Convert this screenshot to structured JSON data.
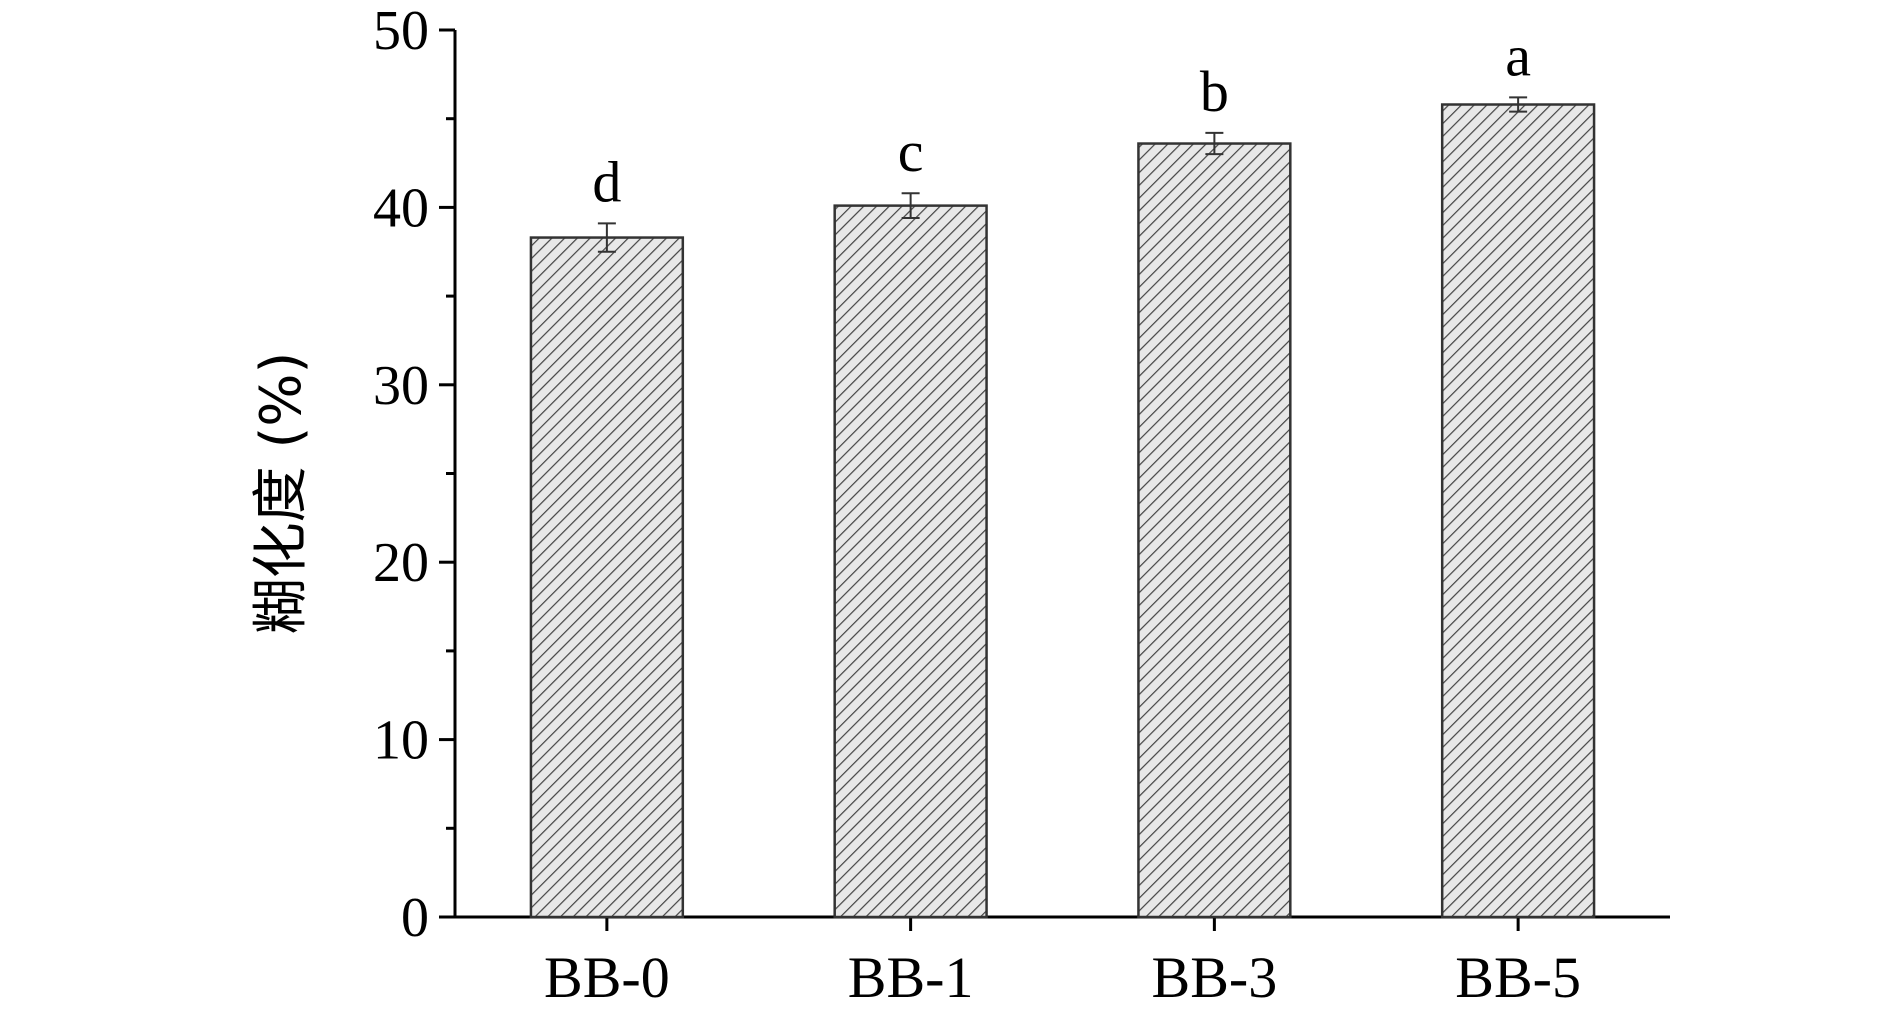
{
  "chart_data": {
    "type": "bar",
    "title": "",
    "xlabel": "",
    "ylabel": "糊化度 (%)",
    "ylim": [
      0,
      50
    ],
    "yticks": [
      0,
      10,
      20,
      30,
      40,
      50
    ],
    "grid": false,
    "categories": [
      "BB-0",
      "BB-1",
      "BB-3",
      "BB-5"
    ],
    "values": [
      38.3,
      40.1,
      43.6,
      45.8
    ],
    "errors": [
      0.8,
      0.7,
      0.6,
      0.4
    ],
    "significance": [
      "d",
      "c",
      "b",
      "a"
    ],
    "bar_fill": "hatched-gray",
    "colors": {
      "axis": "#000000",
      "bar_edge": "#333333",
      "hatch": "#444444",
      "bar_bg": "#e8e8e8"
    }
  }
}
